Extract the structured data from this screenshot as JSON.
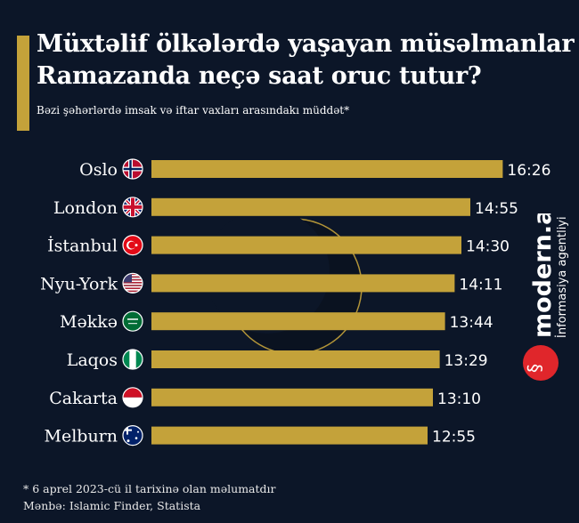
{
  "title_lines": [
    "Müxtəlif ölkələrdə yaşayan müsəlmanlar",
    "Ramazanda neçə saat oruc tutur?"
  ],
  "subtitle": "Bəzi şəhərlərdə imsak və iftar vaxları arasındakı müddət*",
  "footnote": "* 6 aprel 2023-cü il tarixinə olan məlumatdır",
  "source": "Mənbə: Islamic Finder, Statista",
  "logo": {
    "name": "modern.az",
    "tagline": "İnformasiya agentliyi",
    "color": "#e0262b"
  },
  "colors": {
    "background": "#0c1628",
    "bar": "#c4a23a",
    "text": "#ffffff"
  },
  "chart_data": {
    "type": "bar",
    "orientation": "horizontal",
    "title": "Müxtəlif ölkələrdə yaşayan müsəlmanlar Ramazanda neçə saat oruc tutur?",
    "categories": [
      "Oslo",
      "London",
      "İstanbul",
      "Nyu-York",
      "Məkkə",
      "Laqos",
      "Cakarta",
      "Melburn"
    ],
    "labels": [
      "16:26",
      "14:55",
      "14:30",
      "14:11",
      "13:44",
      "13:29",
      "13:10",
      "12:55"
    ],
    "values_minutes": [
      986,
      895,
      870,
      851,
      824,
      809,
      790,
      775
    ],
    "flags": [
      "norway",
      "uk",
      "turkey",
      "usa",
      "saudi-arabia",
      "nigeria",
      "indonesia",
      "australia"
    ],
    "xlim_minutes": [
      0,
      1000
    ],
    "grid": false,
    "legend": "none"
  }
}
